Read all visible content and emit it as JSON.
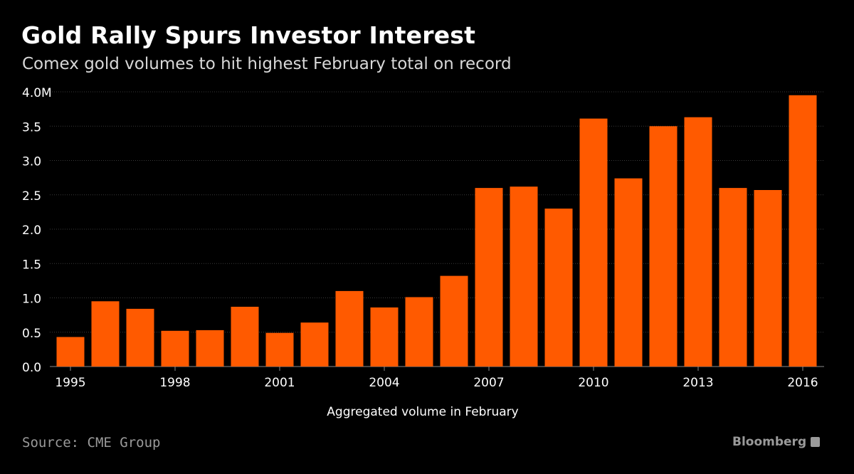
{
  "header": {
    "title": "Gold Rally Spurs Investor Interest",
    "subtitle": "Comex gold volumes to hit highest February total on record"
  },
  "footer": {
    "source": "Source: CME Group",
    "brand": "Bloomberg",
    "brand_icon": "bloomberg-logo-icon"
  },
  "colors": {
    "background": "#000000",
    "bar": "#ff5a00",
    "grid": "#3a3a3a",
    "tick_text": "#ffffff"
  },
  "chart_data": {
    "type": "bar",
    "title": "Gold Rally Spurs Investor Interest",
    "subtitle": "Comex gold volumes to hit highest February total on record",
    "xlabel": "Aggregated volume in February",
    "ylabel": "",
    "ylim": [
      0,
      4.0
    ],
    "yticks": [
      "0.0",
      "0.5",
      "1.0",
      "1.5",
      "2.0",
      "2.5",
      "3.0",
      "3.5",
      "4.0M"
    ],
    "ytick_values": [
      0,
      0.5,
      1.0,
      1.5,
      2.0,
      2.5,
      3.0,
      3.5,
      4.0
    ],
    "categories": [
      "1995",
      "1996",
      "1997",
      "1998",
      "1999",
      "2000",
      "2001",
      "2002",
      "2003",
      "2004",
      "2005",
      "2006",
      "2007",
      "2008",
      "2009",
      "2010",
      "2011",
      "2012",
      "2013",
      "2014",
      "2015",
      "2016"
    ],
    "xtick_labels": [
      "1995",
      "1998",
      "2001",
      "2004",
      "2007",
      "2010",
      "2013",
      "2016"
    ],
    "values": [
      0.43,
      0.95,
      0.84,
      0.52,
      0.53,
      0.87,
      0.49,
      0.64,
      1.1,
      0.86,
      1.01,
      1.32,
      2.6,
      2.62,
      2.3,
      3.61,
      2.74,
      3.5,
      3.63,
      2.6,
      2.57,
      3.95
    ],
    "grid": true,
    "unit": "M"
  }
}
